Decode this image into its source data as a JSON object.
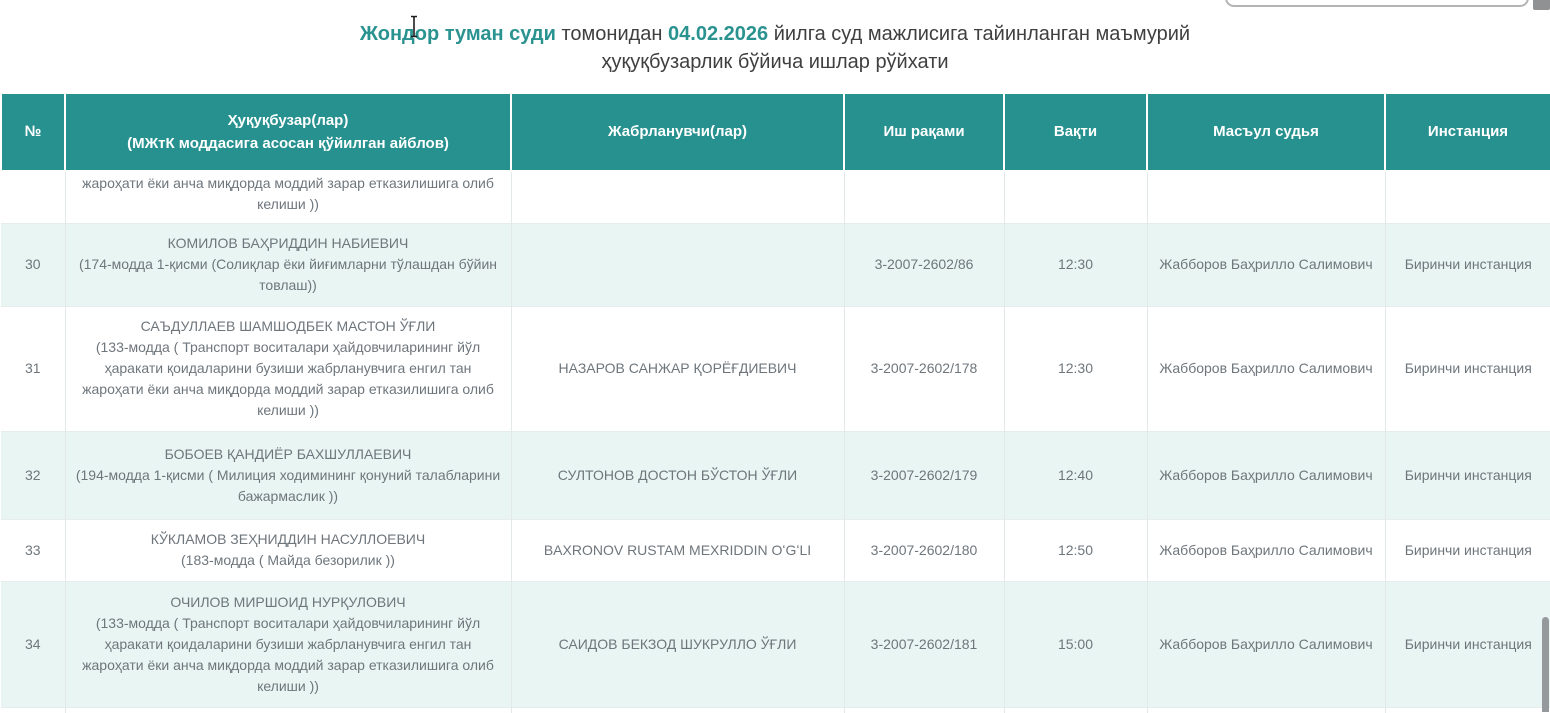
{
  "colors": {
    "header_bg": "#26918f",
    "shaded_row_bg": "#e9f5f3",
    "title_accent": "#2a9390",
    "body_text": "#6e767c"
  },
  "title": {
    "court_name": "Жондор туман суди",
    "connector": "томонидан",
    "date": "04.02.2026",
    "line1_rest": "йилга суд мажлисига тайинланган маъмурий",
    "line2": "ҳуқуқбузарлик бўйича ишлар рўйхати"
  },
  "table": {
    "headers": [
      {
        "label": "№",
        "sub": ""
      },
      {
        "label": "Ҳуқуқбузар(лар)",
        "sub": "(МЖтК моддасига асосан қўйилган айблов)"
      },
      {
        "label": "Жабрланувчи(лар)",
        "sub": ""
      },
      {
        "label": "Иш рақами",
        "sub": ""
      },
      {
        "label": "Вақти",
        "sub": ""
      },
      {
        "label": "Масъул судья",
        "sub": ""
      },
      {
        "label": "Инстанция",
        "sub": ""
      }
    ],
    "partial_top_row": {
      "offender_continuation": "жароҳати ёки анча миқдорда моддий зарар етказилишига олиб келиши ))"
    },
    "rows": [
      {
        "num": "30",
        "offender": "КОМИЛОВ БАҲРИДДИН НАБИЕВИЧ",
        "charge": "(174-модда 1-қисми (Солиқлар ёки йиғимларни тўлашдан бўйин товлаш))",
        "victim": "",
        "case_no": "3-2007-2602/86",
        "time": "12:30",
        "judge": "Жабборов Баҳрилло Салимович",
        "instance": "Биринчи инстанция",
        "shaded": true
      },
      {
        "num": "31",
        "offender": "САЪДУЛЛАЕВ ШАМШОДБЕК МАСТОН ЎҒЛИ",
        "charge": "(133-модда ( Транспорт воситалари ҳайдовчиларининг йўл ҳаракати қоидаларини бузиши жабрланувчига енгил тан жароҳати ёки анча миқдорда моддий зарар етказилишига олиб келиши ))",
        "victim": "НАЗАРОВ САНЖАР ҚОРЁҒДИЕВИЧ",
        "case_no": "3-2007-2602/178",
        "time": "12:30",
        "judge": "Жабборов Баҳрилло Салимович",
        "instance": "Биринчи инстанция",
        "shaded": false
      },
      {
        "num": "32",
        "offender": "БОБОЕВ ҚАНДИЁР БАХШУЛЛАЕВИЧ",
        "charge": "(194-модда 1-қисми ( Милиция ходимининг қонуний талабларини бажармаслик ))",
        "victim": "СУЛТОНОВ ДОСТОН БЎСТОН ЎҒЛИ",
        "case_no": "3-2007-2602/179",
        "time": "12:40",
        "judge": "Жабборов Баҳрилло Салимович",
        "instance": "Биринчи инстанция",
        "shaded": true
      },
      {
        "num": "33",
        "offender": "КЎКЛАМОВ ЗЕҲНИДДИН НАСУЛЛОЕВИЧ",
        "charge": "(183-модда ( Майда безорилик ))",
        "victim": "BAXRONOV RUSTAM MEXRIDDIN OʻGʻLI",
        "case_no": "3-2007-2602/180",
        "time": "12:50",
        "judge": "Жабборов Баҳрилло Салимович",
        "instance": "Биринчи инстанция",
        "shaded": false
      },
      {
        "num": "34",
        "offender": "ОЧИЛОВ МИРШОИД НУРҚУЛОВИЧ",
        "charge": "(133-модда ( Транспорт воситалари ҳайдовчиларининг йўл ҳаракати қоидаларини бузиши жабрланувчига енгил тан жароҳати ёки анча миқдорда моддий зарар етказилишига олиб келиши ))",
        "victim": "САИДОВ БЕКЗОД ШУКРУЛЛО ЎҒЛИ",
        "case_no": "3-2007-2602/181",
        "time": "15:00",
        "judge": "Жабборов Баҳрилло Салимович",
        "instance": "Биринчи инстанция",
        "shaded": true
      }
    ]
  }
}
